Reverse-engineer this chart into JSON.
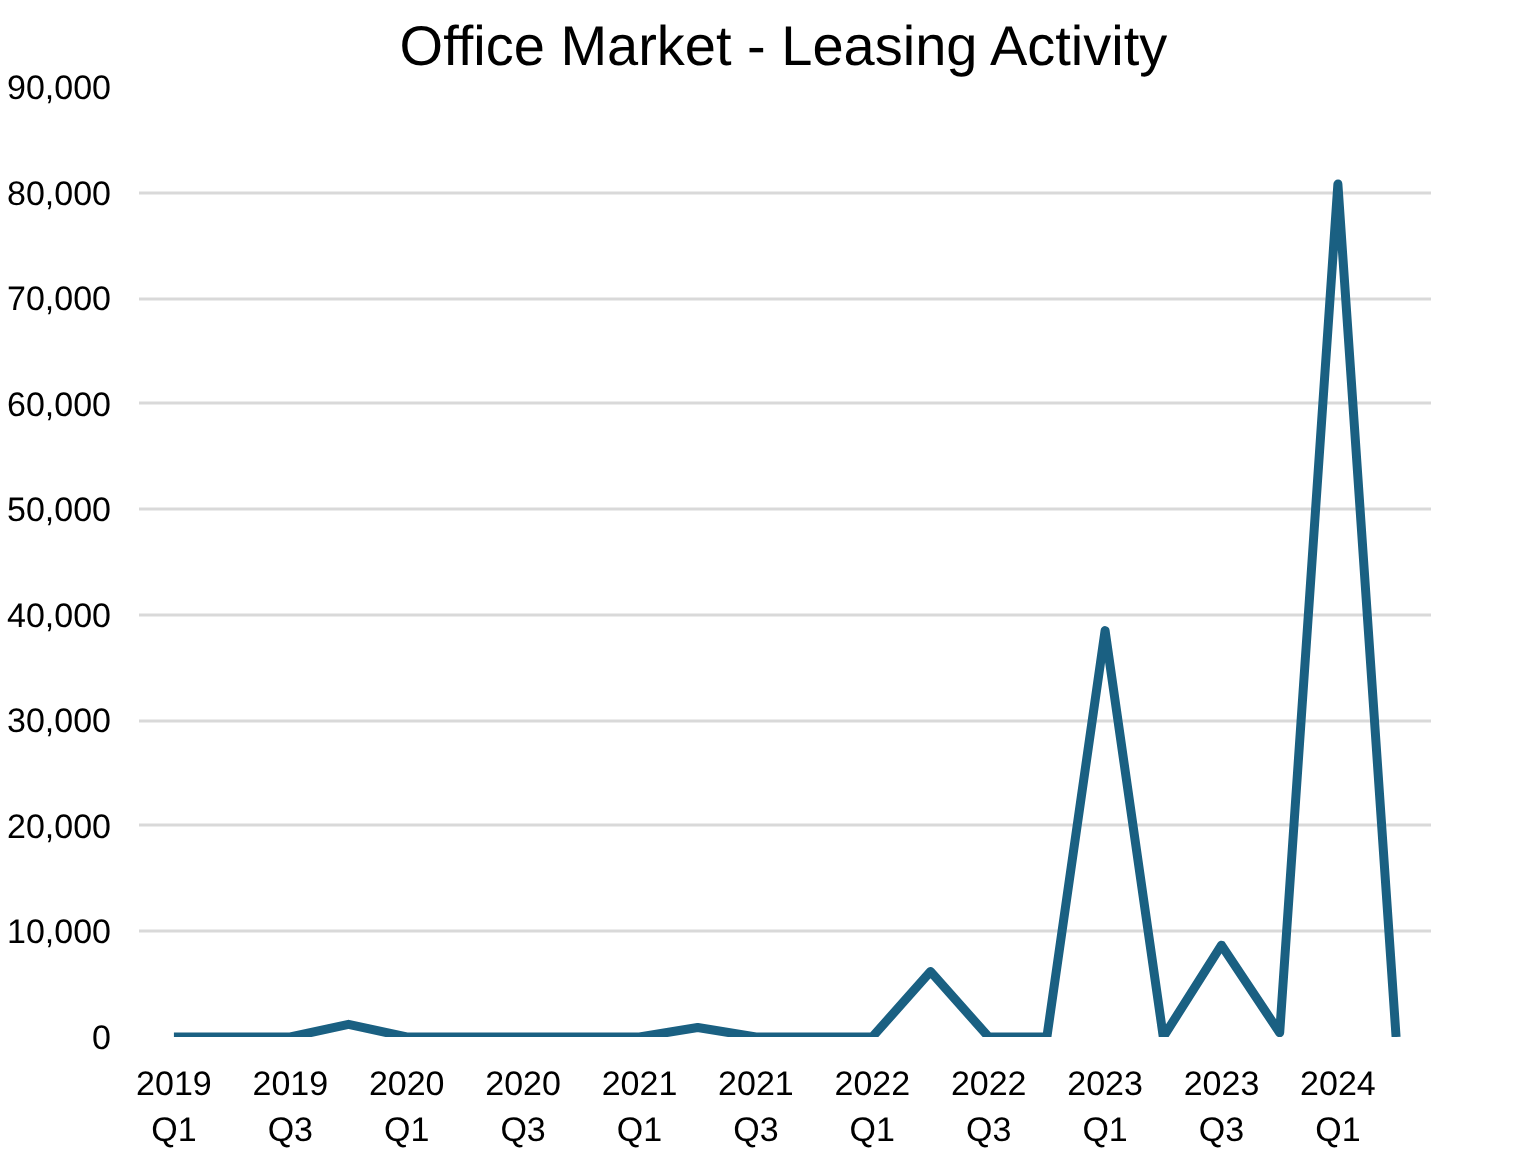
{
  "chart_data": {
    "type": "line",
    "title": "Office Market - Leasing Activity",
    "categories": [
      "2019\nQ1",
      null,
      "2019\nQ3",
      null,
      "2020\nQ1",
      null,
      "2020\nQ3",
      null,
      "2021\nQ1",
      null,
      "2021\nQ3",
      null,
      "2022\nQ1",
      null,
      "2022\nQ3",
      null,
      "2023\nQ1",
      null,
      "2023\nQ3",
      null,
      "2024\nQ1",
      null
    ],
    "series": [
      {
        "color": "#1a6082",
        "values": [
          0,
          0,
          0,
          1200,
          0,
          0,
          0,
          0,
          0,
          900,
          0,
          0,
          0,
          6200,
          0,
          0,
          38500,
          0,
          8700,
          400,
          80800,
          0
        ]
      }
    ],
    "ylim": [
      0,
      90000
    ],
    "yticks": [
      {
        "value": 0,
        "label": "0"
      },
      {
        "value": 10000,
        "label": "10,000"
      },
      {
        "value": 20000,
        "label": "20,000"
      },
      {
        "value": 30000,
        "label": "30,000"
      },
      {
        "value": 40000,
        "label": "40,000"
      },
      {
        "value": 50000,
        "label": "50,000"
      },
      {
        "value": 60000,
        "label": "60,000"
      },
      {
        "value": 70000,
        "label": "70,000"
      },
      {
        "value": 80000,
        "label": "80,000"
      },
      {
        "value": 90000,
        "label": "90,000"
      }
    ],
    "grid": "y",
    "marker": "none",
    "line_style": "solid"
  }
}
